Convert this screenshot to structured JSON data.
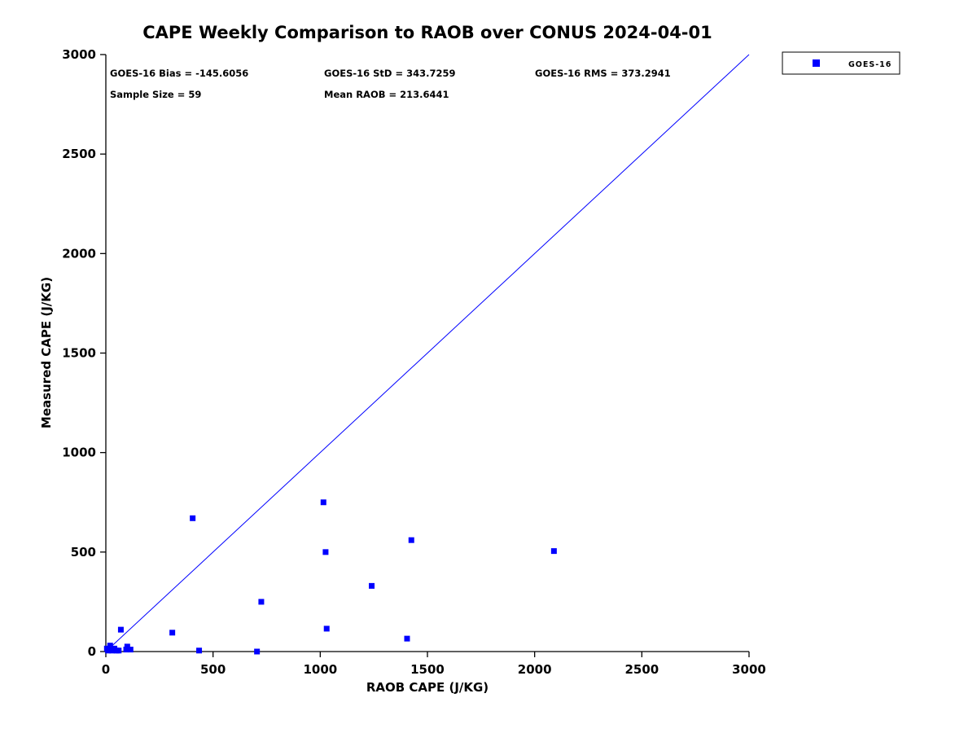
{
  "title": "CAPE Weekly Comparison to RAOB over CONUS 2024-04-01",
  "annotations": {
    "bias": "GOES-16 Bias = -145.6056",
    "std": "GOES-16 StD = 343.7259",
    "rms": "GOES-16 RMS = 373.2941",
    "sample_size": "Sample Size = 59",
    "mean_raob": "Mean RAOB = 213.6441"
  },
  "legend": {
    "position": "top-right-outside",
    "entries": [
      {
        "label": "GOES-16",
        "marker": "square",
        "color": "#0000ff"
      }
    ]
  },
  "chart_data": {
    "type": "scatter",
    "title": "CAPE Weekly Comparison to RAOB over CONUS 2024-04-01",
    "xlabel": "RAOB CAPE (J/KG)",
    "ylabel": "Measured CAPE (J/KG)",
    "xlim": [
      0,
      3000
    ],
    "ylim": [
      0,
      3000
    ],
    "xticks": [
      0,
      500,
      1000,
      1500,
      2000,
      2500,
      3000
    ],
    "yticks": [
      0,
      500,
      1000,
      1500,
      2000,
      2500,
      3000
    ],
    "grid": false,
    "marker_color": "#0000ff",
    "reference_line": {
      "from": [
        0,
        0
      ],
      "to": [
        3000,
        3000
      ],
      "color": "#0000ff"
    },
    "stats": {
      "bias": -145.6056,
      "std": 343.7259,
      "rms": 373.2941,
      "sample_size": 59,
      "mean_raob": 213.6441
    },
    "series": [
      {
        "name": "GOES-16",
        "marker": "square",
        "color": "#0000ff",
        "points": [
          [
            5,
            15
          ],
          [
            10,
            5
          ],
          [
            20,
            30
          ],
          [
            30,
            5
          ],
          [
            40,
            15
          ],
          [
            50,
            5
          ],
          [
            60,
            5
          ],
          [
            70,
            110
          ],
          [
            95,
            10
          ],
          [
            100,
            25
          ],
          [
            115,
            10
          ],
          [
            310,
            95
          ],
          [
            405,
            670
          ],
          [
            435,
            5
          ],
          [
            705,
            0
          ],
          [
            725,
            250
          ],
          [
            1015,
            750
          ],
          [
            1025,
            500
          ],
          [
            1030,
            115
          ],
          [
            1240,
            330
          ],
          [
            1405,
            65
          ],
          [
            1425,
            560
          ],
          [
            2090,
            505
          ]
        ]
      }
    ]
  }
}
